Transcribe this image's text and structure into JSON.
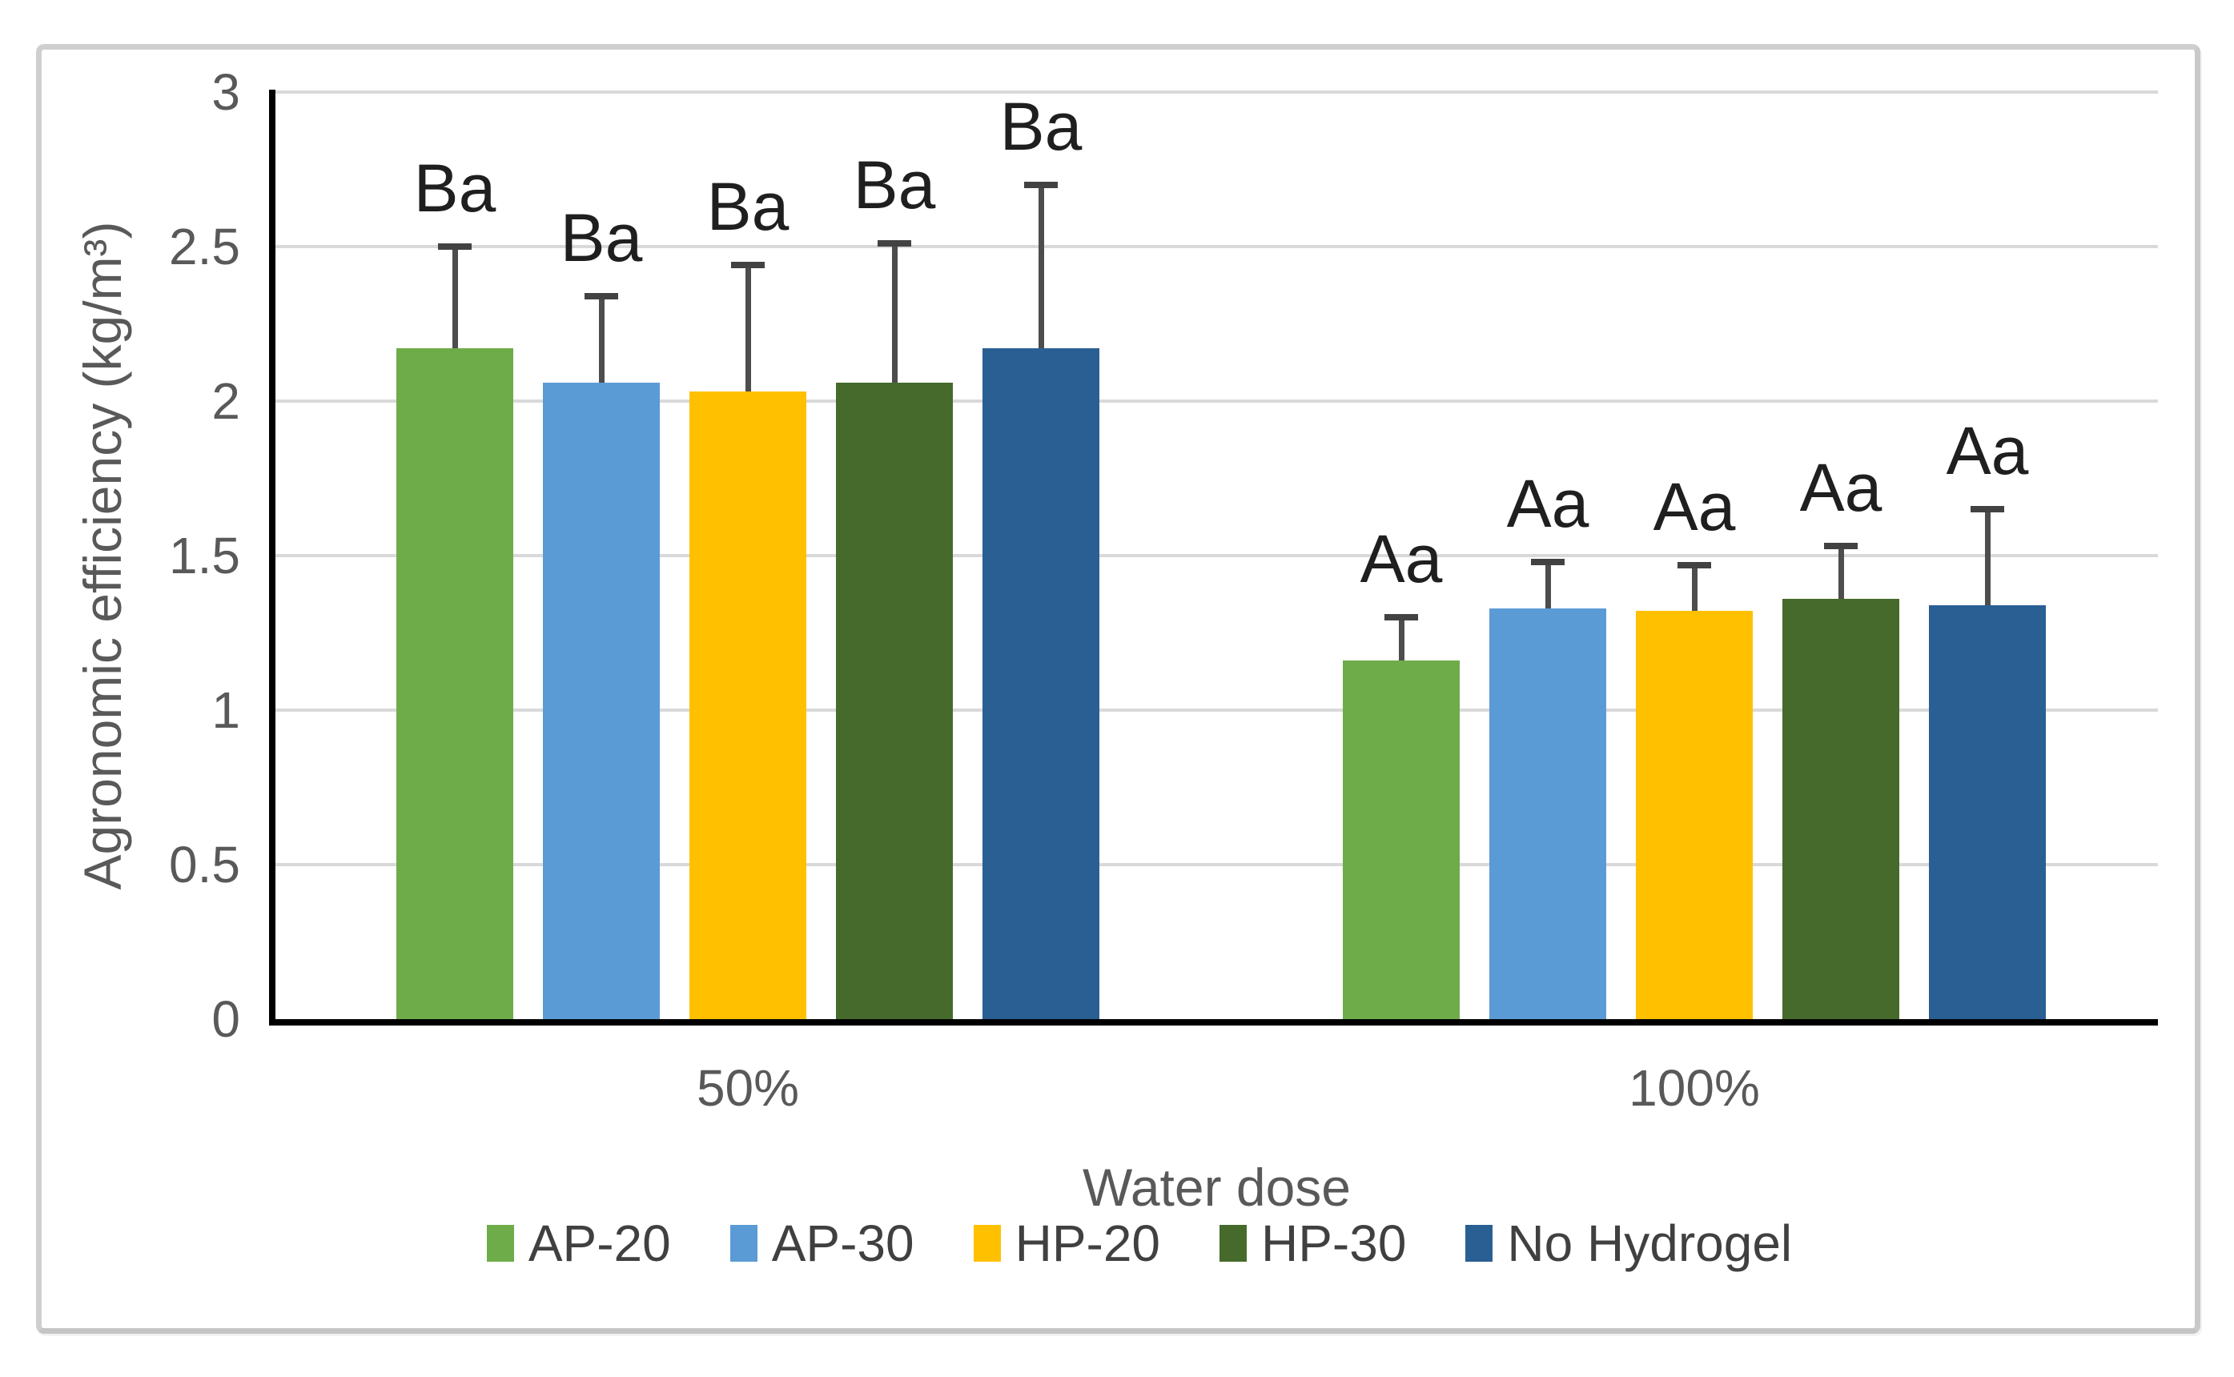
{
  "chart_data": {
    "type": "bar",
    "title": "",
    "xlabel": "Water dose",
    "ylabel": "Agronomic efficiency (kg/m³)",
    "categories": [
      "50%",
      "100%"
    ],
    "ylim": [
      0,
      3
    ],
    "y_ticks": [
      0,
      0.5,
      1,
      1.5,
      2,
      2.5,
      3
    ],
    "grid": true,
    "legend_position": "bottom",
    "series": [
      {
        "name": "AP-20",
        "color": "#6EAC49",
        "values": [
          2.17,
          1.16
        ],
        "error_up": [
          0.33,
          0.14
        ]
      },
      {
        "name": "AP-30",
        "color": "#5B9BD5",
        "values": [
          2.06,
          1.33
        ],
        "error_up": [
          0.28,
          0.15
        ]
      },
      {
        "name": "HP-20",
        "color": "#FFC000",
        "values": [
          2.03,
          1.32
        ],
        "error_up": [
          0.41,
          0.15
        ]
      },
      {
        "name": "HP-30",
        "color": "#456A2B",
        "values": [
          2.06,
          1.36
        ],
        "error_up": [
          0.45,
          0.17
        ]
      },
      {
        "name": "No Hydrogel",
        "color": "#2A5F94",
        "values": [
          2.17,
          1.34
        ],
        "error_up": [
          0.53,
          0.31
        ]
      }
    ],
    "annotations": [
      [
        "Ba",
        "Ba",
        "Ba",
        "Ba",
        "Ba"
      ],
      [
        "Aa",
        "Aa",
        "Aa",
        "Aa",
        "Aa"
      ]
    ]
  }
}
